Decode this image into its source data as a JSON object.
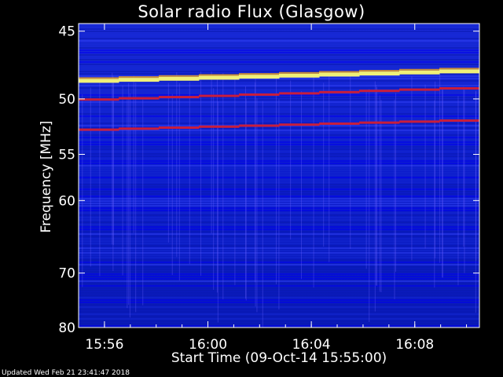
{
  "title": "Solar radio Flux (Glasgow)",
  "footer": "Updated Wed Feb 21 23:41:47 2018",
  "chart_data": {
    "type": "heatmap",
    "title": "Solar radio Flux (Glasgow)",
    "xlabel": "Start Time (09-Oct-14 15:55:00)",
    "ylabel": "Frequency [MHz]",
    "x_unit": "minutes after 15:55:00",
    "xlim": [
      0,
      15.5
    ],
    "ylim": [
      80,
      44.5
    ],
    "x_ticks": [
      {
        "value": 1,
        "label": "15:56"
      },
      {
        "value": 5,
        "label": "16:00"
      },
      {
        "value": 9,
        "label": "16:04"
      },
      {
        "value": 13,
        "label": "16:08"
      }
    ],
    "y_ticks": [
      45,
      50,
      55,
      60,
      70,
      80
    ],
    "colors": {
      "background": "#0a14c8",
      "low": "#0000e6",
      "high": "#f0f078",
      "band": "#c81e3c",
      "axis": "#ffffff"
    },
    "bands": [
      {
        "start_freq": 48.6,
        "end_freq": 47.8,
        "intensity": "high"
      },
      {
        "start_freq": 50.1,
        "end_freq": 49.1,
        "intensity": "medium"
      },
      {
        "start_freq": 52.7,
        "end_freq": 51.8,
        "intensity": "medium"
      }
    ]
  }
}
